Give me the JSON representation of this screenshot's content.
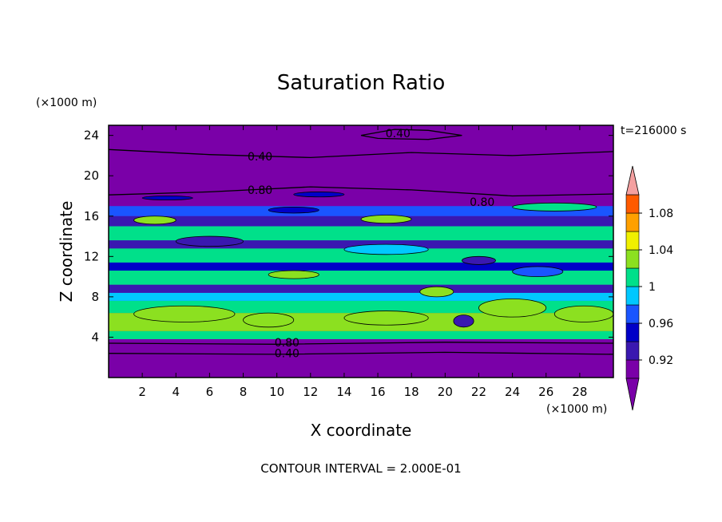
{
  "chart_data": {
    "type": "heatmap",
    "title": "Saturation Ratio",
    "xlabel": "X coordinate",
    "ylabel": "Z coordinate",
    "x_unit": "(×1000 m)",
    "y_unit": "(×1000 m)",
    "time_label": "t=216000 s",
    "footer": "CONTOUR INTERVAL = 2.000E-01",
    "xlim": [
      0,
      30
    ],
    "ylim": [
      0,
      25
    ],
    "x_ticks": [
      "2",
      "4",
      "6",
      "8",
      "10",
      "12",
      "14",
      "16",
      "18",
      "20",
      "22",
      "24",
      "26",
      "28"
    ],
    "y_ticks": [
      "4",
      "8",
      "12",
      "16",
      "20",
      "24"
    ],
    "colorbar": {
      "levels": [
        0.9,
        0.92,
        0.94,
        0.96,
        0.98,
        1.0,
        1.02,
        1.04,
        1.06,
        1.08,
        1.1
      ],
      "colors": [
        "#7a00a8",
        "#3a18b0",
        "#0000c8",
        "#1a55ff",
        "#00c8ff",
        "#00e08a",
        "#8ce020",
        "#f0f000",
        "#ffa000",
        "#ff5a00",
        "#ff1e1e"
      ],
      "over_color": "#f4a0a0",
      "under_color": "#7a00a8",
      "tick_labels": [
        "0.92",
        "0.96",
        "1",
        "1.04",
        "1.08"
      ],
      "tick_values": [
        0.92,
        0.96,
        1.0,
        1.04,
        1.08
      ]
    },
    "contour_labels": [
      {
        "text": "0.40",
        "x": 17.2,
        "z": 24.2
      },
      {
        "text": "0.40",
        "x": 9.0,
        "z": 21.9
      },
      {
        "text": "0.80",
        "x": 9.0,
        "z": 18.6
      },
      {
        "text": "0.80",
        "x": 22.2,
        "z": 17.4
      },
      {
        "text": "0.80",
        "x": 10.6,
        "z": 3.5
      },
      {
        "text": "0.40",
        "x": 10.6,
        "z": 2.4
      }
    ],
    "bands": [
      {
        "z0": 0.0,
        "z1": 3.8,
        "level": 0
      },
      {
        "z0": 3.8,
        "z1": 4.6,
        "level": 5
      },
      {
        "z0": 4.6,
        "z1": 6.4,
        "level": 6
      },
      {
        "z0": 6.4,
        "z1": 7.6,
        "level": 5
      },
      {
        "z0": 7.6,
        "z1": 8.4,
        "level": 4
      },
      {
        "z0": 8.4,
        "z1": 9.2,
        "level": 1
      },
      {
        "z0": 9.2,
        "z1": 10.6,
        "level": 5
      },
      {
        "z0": 10.6,
        "z1": 11.4,
        "level": 2
      },
      {
        "z0": 11.4,
        "z1": 12.8,
        "level": 5
      },
      {
        "z0": 12.8,
        "z1": 13.6,
        "level": 1
      },
      {
        "z0": 13.6,
        "z1": 15.0,
        "level": 5
      },
      {
        "z0": 15.0,
        "z1": 16.0,
        "level": 1
      },
      {
        "z0": 16.0,
        "z1": 17.0,
        "level": 3
      },
      {
        "z0": 17.0,
        "z1": 25.0,
        "level": 0
      }
    ],
    "patches": [
      {
        "x": 1.5,
        "z": 5.5,
        "w": 6.0,
        "h": 1.6,
        "level": 6
      },
      {
        "x": 8.0,
        "z": 5.0,
        "w": 3.0,
        "h": 1.4,
        "level": 6
      },
      {
        "x": 14.0,
        "z": 5.2,
        "w": 5.0,
        "h": 1.4,
        "level": 6
      },
      {
        "x": 22.0,
        "z": 6.0,
        "w": 4.0,
        "h": 1.8,
        "level": 6
      },
      {
        "x": 26.5,
        "z": 5.5,
        "w": 3.5,
        "h": 1.6,
        "level": 6
      },
      {
        "x": 20.5,
        "z": 5.0,
        "w": 1.2,
        "h": 1.2,
        "level": 1
      },
      {
        "x": 18.5,
        "z": 8.0,
        "w": 2.0,
        "h": 1.0,
        "level": 6
      },
      {
        "x": 9.5,
        "z": 9.8,
        "w": 3.0,
        "h": 0.8,
        "level": 6
      },
      {
        "x": 24.0,
        "z": 10.0,
        "w": 3.0,
        "h": 1.0,
        "level": 3
      },
      {
        "x": 4.0,
        "z": 13.0,
        "w": 4.0,
        "h": 1.0,
        "level": 1
      },
      {
        "x": 14.0,
        "z": 12.2,
        "w": 5.0,
        "h": 1.0,
        "level": 4
      },
      {
        "x": 21.0,
        "z": 11.2,
        "w": 2.0,
        "h": 0.8,
        "level": 1
      },
      {
        "x": 1.5,
        "z": 15.2,
        "w": 2.5,
        "h": 0.8,
        "level": 6
      },
      {
        "x": 15.0,
        "z": 15.3,
        "w": 3.0,
        "h": 0.8,
        "level": 6
      },
      {
        "x": 24.0,
        "z": 16.5,
        "w": 5.0,
        "h": 0.8,
        "level": 5
      },
      {
        "x": 9.5,
        "z": 16.3,
        "w": 3.0,
        "h": 0.6,
        "level": 2
      },
      {
        "x": 2.0,
        "z": 17.6,
        "w": 3.0,
        "h": 0.4,
        "level": 2
      },
      {
        "x": 11.0,
        "z": 17.9,
        "w": 3.0,
        "h": 0.5,
        "level": 2
      }
    ],
    "contour_lines": [
      {
        "value": 0.4,
        "points": [
          [
            0,
            2.4
          ],
          [
            10,
            2.3
          ],
          [
            20,
            2.5
          ],
          [
            30,
            2.3
          ]
        ]
      },
      {
        "value": 0.8,
        "points": [
          [
            0,
            3.4
          ],
          [
            10,
            3.3
          ],
          [
            20,
            3.5
          ],
          [
            30,
            3.4
          ]
        ]
      },
      {
        "value": 0.8,
        "points": [
          [
            0,
            18.1
          ],
          [
            6,
            18.4
          ],
          [
            12,
            18.9
          ],
          [
            18,
            18.6
          ],
          [
            24,
            18.0
          ],
          [
            30,
            18.2
          ]
        ]
      },
      {
        "value": 0.4,
        "points": [
          [
            0,
            22.6
          ],
          [
            6,
            22.1
          ],
          [
            12,
            21.8
          ],
          [
            18,
            22.3
          ],
          [
            24,
            22.0
          ],
          [
            30,
            22.4
          ]
        ]
      },
      {
        "value": 0.4,
        "points": [
          [
            15,
            24.0
          ],
          [
            17,
            24.6
          ],
          [
            19,
            24.5
          ],
          [
            21,
            24.0
          ],
          [
            19,
            23.6
          ],
          [
            16,
            23.7
          ],
          [
            15,
            24.0
          ]
        ]
      }
    ]
  }
}
